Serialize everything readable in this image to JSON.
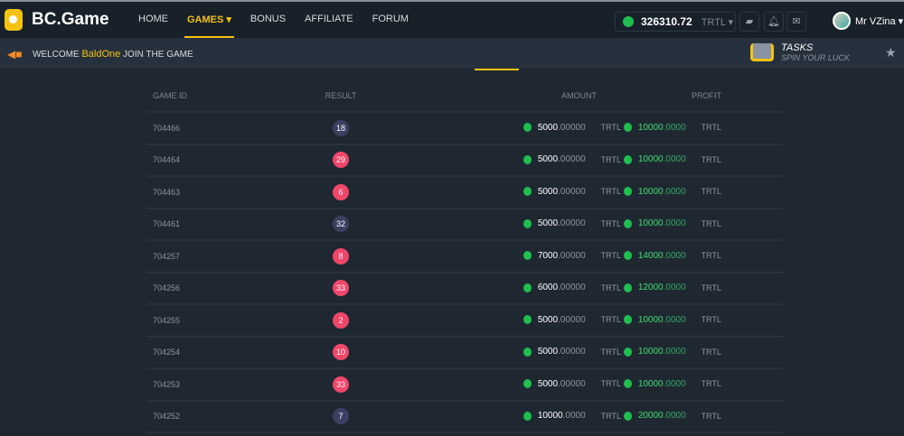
{
  "header": {
    "logo": "BC.Game",
    "nav": [
      {
        "label": "HOME"
      },
      {
        "label": "GAMES ▾",
        "active": true
      },
      {
        "label": "BONUS"
      },
      {
        "label": "AFFILIATE"
      },
      {
        "label": "FORUM"
      }
    ],
    "balance": "326310.72",
    "currency": "TRTL ▾",
    "user": "Mr VZina ▾"
  },
  "subbar": {
    "welcome": "WELCOME",
    "name": "BaldOne",
    "join": "JOIN THE GAME",
    "tasks": "TASKS",
    "tasks_sub": "SPIN YOUR LUCK"
  },
  "table": {
    "headers": [
      "GAME ID",
      "RESULT",
      "AMOUNT",
      "PROFIT"
    ],
    "rows": [
      {
        "id": "704466",
        "result": "18",
        "color": "#3b4063",
        "amount_int": "5000",
        "amount_dec": ".00000",
        "profit_int": "10000",
        "profit_dec": ".0000",
        "currency": "TRTL"
      },
      {
        "id": "704464",
        "result": "29",
        "color": "#f0466a",
        "amount_int": "5000",
        "amount_dec": ".00000",
        "profit_int": "10000",
        "profit_dec": ".0000",
        "currency": "TRTL"
      },
      {
        "id": "704463",
        "result": "6",
        "color": "#f0466a",
        "amount_int": "5000",
        "amount_dec": ".00000",
        "profit_int": "10000",
        "profit_dec": ".0000",
        "currency": "TRTL"
      },
      {
        "id": "704461",
        "result": "32",
        "color": "#3b4063",
        "amount_int": "5000",
        "amount_dec": ".00000",
        "profit_int": "10000",
        "profit_dec": ".0000",
        "currency": "TRTL"
      },
      {
        "id": "704257",
        "result": "8",
        "color": "#f0466a",
        "amount_int": "7000",
        "amount_dec": ".00000",
        "profit_int": "14000",
        "profit_dec": ".0000",
        "currency": "TRTL"
      },
      {
        "id": "704256",
        "result": "33",
        "color": "#f0466a",
        "amount_int": "6000",
        "amount_dec": ".00000",
        "profit_int": "12000",
        "profit_dec": ".0000",
        "currency": "TRTL"
      },
      {
        "id": "704255",
        "result": "2",
        "color": "#f0466a",
        "amount_int": "5000",
        "amount_dec": ".00000",
        "profit_int": "10000",
        "profit_dec": ".0000",
        "currency": "TRTL"
      },
      {
        "id": "704254",
        "result": "10",
        "color": "#f0466a",
        "amount_int": "5000",
        "amount_dec": ".00000",
        "profit_int": "10000",
        "profit_dec": ".0000",
        "currency": "TRTL"
      },
      {
        "id": "704253",
        "result": "33",
        "color": "#f0466a",
        "amount_int": "5000",
        "amount_dec": ".00000",
        "profit_int": "10000",
        "profit_dec": ".0000",
        "currency": "TRTL"
      },
      {
        "id": "704252",
        "result": "7",
        "color": "#3b4063",
        "amount_int": "10000",
        "amount_dec": ".0000",
        "profit_int": "20000",
        "profit_dec": ".0000",
        "currency": "TRTL"
      }
    ]
  }
}
